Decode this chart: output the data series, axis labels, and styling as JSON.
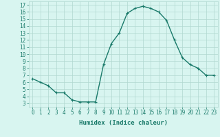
{
  "x": [
    0,
    1,
    2,
    3,
    4,
    5,
    6,
    7,
    8,
    9,
    10,
    11,
    12,
    13,
    14,
    15,
    16,
    17,
    18,
    19,
    20,
    21,
    22,
    23
  ],
  "y": [
    6.5,
    6.0,
    5.5,
    4.5,
    4.5,
    3.5,
    3.2,
    3.2,
    3.2,
    8.5,
    11.5,
    13.0,
    15.8,
    16.5,
    16.8,
    16.5,
    16.0,
    14.8,
    12.0,
    9.5,
    8.5,
    8.0,
    7.0,
    7.0
  ],
  "line_color": "#1a7a6a",
  "marker": "+",
  "marker_size": 3,
  "bg_color": "#d8f5f0",
  "grid_color": "#b0d8d0",
  "xlabel": "Humidex (Indice chaleur)",
  "xlabel_fontsize": 6.5,
  "xlabel_color": "#1a7a6a",
  "ylabel_ticks": [
    3,
    4,
    5,
    6,
    7,
    8,
    9,
    10,
    11,
    12,
    13,
    14,
    15,
    16,
    17
  ],
  "xtick_labels": [
    "0",
    "1",
    "2",
    "3",
    "4",
    "5",
    "6",
    "7",
    "8",
    "9",
    "10",
    "11",
    "12",
    "13",
    "14",
    "15",
    "16",
    "17",
    "18",
    "19",
    "20",
    "21",
    "22",
    "23"
  ],
  "ylim": [
    2.5,
    17.5
  ],
  "xlim": [
    -0.5,
    23.5
  ],
  "tick_color": "#1a7a6a",
  "tick_fontsize": 5.5,
  "line_width": 1.0,
  "marker_edge_width": 0.8
}
